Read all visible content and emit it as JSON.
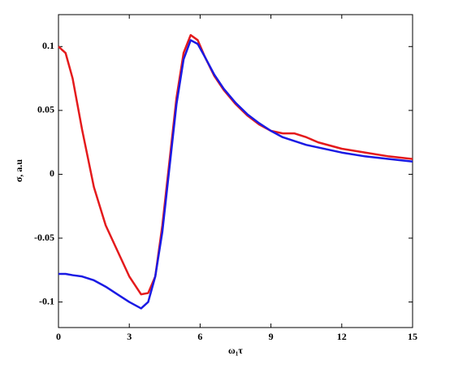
{
  "chart_data": {
    "type": "line",
    "x_label": "ω₁τ",
    "y_label": "σ, a.u",
    "x": [
      0,
      0.3,
      0.6,
      1,
      1.5,
      2,
      2.5,
      3,
      3.5,
      3.8,
      4.1,
      4.4,
      4.7,
      5,
      5.3,
      5.6,
      5.9,
      6.2,
      6.6,
      7,
      7.5,
      8,
      8.5,
      9,
      9.5,
      10,
      10.5,
      11,
      12,
      13,
      14,
      15
    ],
    "series": [
      {
        "color": "#e41a1c",
        "values": [
          0.1,
          0.095,
          0.075,
          0.035,
          -0.01,
          -0.04,
          -0.06,
          -0.08,
          -0.094,
          -0.093,
          -0.08,
          -0.04,
          0.01,
          0.06,
          0.095,
          0.109,
          0.105,
          0.092,
          0.077,
          0.066,
          0.055,
          0.046,
          0.039,
          0.034,
          0.032,
          0.032,
          0.029,
          0.025,
          0.02,
          0.017,
          0.014,
          0.012
        ]
      },
      {
        "color": "#1a1ae4",
        "values": [
          -0.078,
          -0.078,
          -0.079,
          -0.08,
          -0.083,
          -0.088,
          -0.094,
          -0.1,
          -0.105,
          -0.1,
          -0.08,
          -0.045,
          0.005,
          0.055,
          0.09,
          0.105,
          0.102,
          0.092,
          0.078,
          0.067,
          0.056,
          0.047,
          0.04,
          0.034,
          0.029,
          0.026,
          0.023,
          0.021,
          0.017,
          0.014,
          0.012,
          0.01
        ]
      }
    ],
    "xlim": [
      0,
      15
    ],
    "xticks": [
      0,
      3,
      6,
      9,
      12,
      15
    ],
    "ylim": [
      -0.12,
      0.125
    ],
    "yticks": [
      -0.1,
      -0.05,
      0,
      0.05,
      0.1
    ]
  }
}
